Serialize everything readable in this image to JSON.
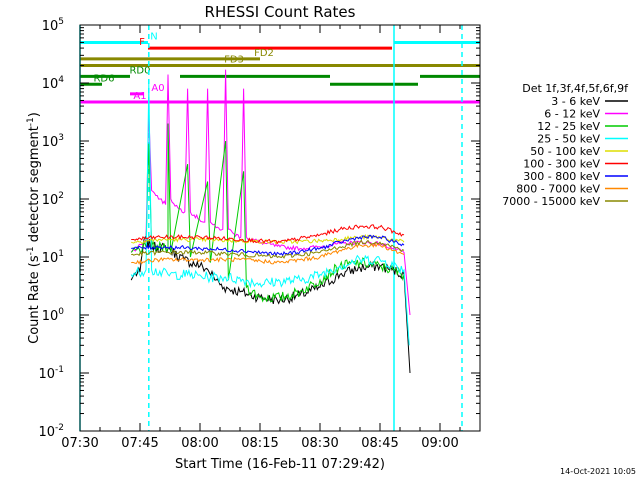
{
  "chart_data": {
    "type": "line",
    "title": "RHESSI Count Rates",
    "xlabel": "Start Time (16-Feb-11 07:29:42)",
    "ylabel": "Count Rate (s",
    "ylabel_sup1": "-1",
    "ylabel_mid": " detector segment",
    "ylabel_sup2": "-1",
    "ylabel_end": ")",
    "x_units": "minutes after 07:30 UT",
    "xlim": [
      0,
      100
    ],
    "ylim": [
      0.01,
      100000
    ],
    "y_scale": "log",
    "x_ticks": [
      {
        "x": 0,
        "label": "07:30"
      },
      {
        "x": 15,
        "label": "07:45"
      },
      {
        "x": 30,
        "label": "08:00"
      },
      {
        "x": 45,
        "label": "08:15"
      },
      {
        "x": 60,
        "label": "08:30"
      },
      {
        "x": 75,
        "label": "08:45"
      },
      {
        "x": 90,
        "label": "09:00"
      }
    ],
    "y_ticks": [
      {
        "v": 0.01,
        "base": "10",
        "exp": "-2"
      },
      {
        "v": 0.1,
        "base": "10",
        "exp": "-1"
      },
      {
        "v": 1,
        "base": "10",
        "exp": "0"
      },
      {
        "v": 10,
        "base": "10",
        "exp": "1"
      },
      {
        "v": 100,
        "base": "10",
        "exp": "2"
      },
      {
        "v": 1000,
        "base": "10",
        "exp": "3"
      },
      {
        "v": 10000,
        "base": "10",
        "exp": "4"
      },
      {
        "v": 100000,
        "base": "10",
        "exp": "5"
      }
    ],
    "legend_title": "Det 1f,3f,4f,5f,6f,9f",
    "legend_position": "right",
    "series": [
      {
        "name": "3 - 6 keV",
        "color": "#000000",
        "points": [
          [
            12.8,
            4
          ],
          [
            13.5,
            5
          ],
          [
            15,
            5.5
          ],
          [
            16,
            20
          ],
          [
            18,
            15
          ],
          [
            22,
            14
          ],
          [
            26,
            9
          ],
          [
            30,
            7
          ],
          [
            32,
            6
          ],
          [
            34,
            4
          ],
          [
            36,
            3
          ],
          [
            40,
            2.5
          ],
          [
            45,
            2
          ],
          [
            50,
            1.8
          ],
          [
            55,
            2.2
          ],
          [
            60,
            3
          ],
          [
            65,
            5
          ],
          [
            70,
            6.5
          ],
          [
            75,
            7
          ],
          [
            78,
            6
          ],
          [
            81,
            5
          ],
          [
            82.5,
            0.1
          ]
        ]
      },
      {
        "name": "6 - 12 keV",
        "color": "#ff00ff",
        "points": [
          [
            12.8,
            12
          ],
          [
            14.5,
            15
          ],
          [
            16.5,
            20
          ],
          [
            17.2,
            3000
          ],
          [
            17.9,
            140
          ],
          [
            20,
            100
          ],
          [
            21.4,
            80
          ],
          [
            22,
            14000
          ],
          [
            22.7,
            100
          ],
          [
            24.5,
            70
          ],
          [
            26.2,
            60
          ],
          [
            26.9,
            8000
          ],
          [
            27.6,
            60
          ],
          [
            29.8,
            45
          ],
          [
            31.2,
            40
          ],
          [
            31.9,
            8000
          ],
          [
            32.6,
            40
          ],
          [
            34,
            32
          ],
          [
            35.7,
            30
          ],
          [
            36.4,
            17000
          ],
          [
            37.1,
            30
          ],
          [
            38.5,
            25
          ],
          [
            40.2,
            22
          ],
          [
            40.9,
            8000
          ],
          [
            41.6,
            22
          ],
          [
            45,
            18
          ],
          [
            50,
            15
          ],
          [
            55,
            14
          ],
          [
            60,
            15
          ],
          [
            65,
            17
          ],
          [
            70,
            18
          ],
          [
            75,
            17
          ],
          [
            81,
            12
          ],
          [
            82.5,
            1
          ]
        ]
      },
      {
        "name": "12 - 25 keV",
        "color": "#00cc00",
        "points": [
          [
            12.8,
            12
          ],
          [
            16.5,
            15
          ],
          [
            17.2,
            900
          ],
          [
            17.9,
            15
          ],
          [
            22,
            14
          ],
          [
            22,
            2000
          ],
          [
            22.7,
            12
          ],
          [
            26.9,
            400
          ],
          [
            27.6,
            10
          ],
          [
            31.9,
            200
          ],
          [
            32.6,
            8
          ],
          [
            36.4,
            1000
          ],
          [
            37.1,
            4
          ],
          [
            40.9,
            300
          ],
          [
            41.6,
            3
          ],
          [
            45,
            2
          ],
          [
            50,
            2
          ],
          [
            55,
            2.5
          ],
          [
            60,
            4
          ],
          [
            65,
            7
          ],
          [
            70,
            8
          ],
          [
            75,
            7
          ],
          [
            81,
            5
          ]
        ]
      },
      {
        "name": "25 - 50 keV",
        "color": "#00ffff",
        "points": [
          [
            12.8,
            5
          ],
          [
            16.5,
            6
          ],
          [
            17.2,
            10000
          ],
          [
            17.9,
            6
          ],
          [
            22,
            5
          ],
          [
            26.9,
            5
          ],
          [
            31.9,
            4.5
          ],
          [
            36.4,
            4.5
          ],
          [
            40.9,
            4
          ],
          [
            45,
            3.5
          ],
          [
            50,
            3.8
          ],
          [
            55,
            4
          ],
          [
            60,
            5
          ],
          [
            65,
            7
          ],
          [
            70,
            9
          ],
          [
            75,
            9
          ],
          [
            81,
            6
          ],
          [
            82.3,
            0.3
          ]
        ]
      },
      {
        "name": "50 - 100 keV",
        "color": "#dddd00",
        "points": [
          [
            12.8,
            18
          ],
          [
            20,
            20
          ],
          [
            30,
            20
          ],
          [
            40,
            19
          ],
          [
            50,
            18
          ],
          [
            60,
            19
          ],
          [
            70,
            22
          ],
          [
            75,
            22
          ],
          [
            81,
            18
          ]
        ]
      },
      {
        "name": "100 - 300 keV",
        "color": "#ff0000",
        "points": [
          [
            12.8,
            20
          ],
          [
            20,
            22
          ],
          [
            30,
            22
          ],
          [
            40,
            20
          ],
          [
            50,
            18
          ],
          [
            60,
            24
          ],
          [
            65,
            30
          ],
          [
            70,
            34
          ],
          [
            75,
            33
          ],
          [
            81,
            24
          ]
        ]
      },
      {
        "name": "300 - 800 keV",
        "color": "#0000ff",
        "points": [
          [
            12.8,
            14
          ],
          [
            20,
            15
          ],
          [
            30,
            14
          ],
          [
            40,
            13
          ],
          [
            50,
            11
          ],
          [
            60,
            14
          ],
          [
            65,
            18
          ],
          [
            70,
            22
          ],
          [
            75,
            22
          ],
          [
            81,
            16
          ]
        ]
      },
      {
        "name": "800 - 7000 keV",
        "color": "#ff8800",
        "points": [
          [
            12.8,
            8
          ],
          [
            20,
            9
          ],
          [
            30,
            9
          ],
          [
            40,
            9
          ],
          [
            50,
            8
          ],
          [
            60,
            10
          ],
          [
            65,
            13
          ],
          [
            70,
            16
          ],
          [
            75,
            16
          ],
          [
            81,
            11
          ]
        ]
      },
      {
        "name": "7000 - 15000 keV",
        "color": "#888800",
        "points": [
          [
            12.8,
            11
          ],
          [
            20,
            12
          ],
          [
            30,
            12
          ],
          [
            40,
            11
          ],
          [
            50,
            10
          ],
          [
            60,
            12
          ],
          [
            65,
            15
          ],
          [
            70,
            18
          ],
          [
            75,
            18
          ],
          [
            81,
            13
          ]
        ]
      }
    ],
    "flag_bars": [
      {
        "label": "N",
        "color": "#00ffff",
        "value": 50000,
        "segments": [
          [
            0,
            17
          ],
          [
            78.5,
            100
          ]
        ],
        "label_at": 18.5
      },
      {
        "label": "F",
        "color": "#ff0000",
        "value": 40000,
        "segments": [
          [
            17,
            78
          ]
        ],
        "label_at": 15.5
      },
      {
        "label": "FD2",
        "color": "#888800",
        "value": 26000,
        "segments": [
          [
            0,
            45
          ]
        ],
        "label_at": 46
      },
      {
        "label": "FD3",
        "color": "#888800",
        "value": 20000,
        "segments": [
          [
            0,
            100
          ]
        ],
        "label_at": 38.5
      },
      {
        "label": "RD0",
        "color": "#008800",
        "value": 13000,
        "segments": [
          [
            0,
            12.5
          ],
          [
            25,
            62.5
          ],
          [
            85,
            100
          ]
        ],
        "label_at": 15
      },
      {
        "label": "RD6",
        "color": "#008800",
        "value": 9500,
        "segments": [
          [
            0,
            5.5
          ],
          [
            62.5,
            84.5
          ]
        ],
        "label_at": 6
      },
      {
        "label": "A0",
        "color": "#ff00ff",
        "value": 6500,
        "segments": [
          [
            12.5,
            16
          ]
        ],
        "label_at": 19.5
      },
      {
        "label": "A1",
        "color": "#ff00ff",
        "value": 4700,
        "segments": [
          [
            0,
            100
          ]
        ],
        "label_at": 15
      }
    ],
    "vertical_markers": [
      {
        "x": 0,
        "color": "#00ffff",
        "style": "solid"
      },
      {
        "x": 17.2,
        "color": "#00ffff",
        "style": "dashed"
      },
      {
        "x": 78.5,
        "color": "#00ffff",
        "style": "solid"
      },
      {
        "x": 95.5,
        "color": "#00ffff",
        "style": "dashed"
      }
    ],
    "timestamp": "14-Oct-2021 10:05"
  }
}
